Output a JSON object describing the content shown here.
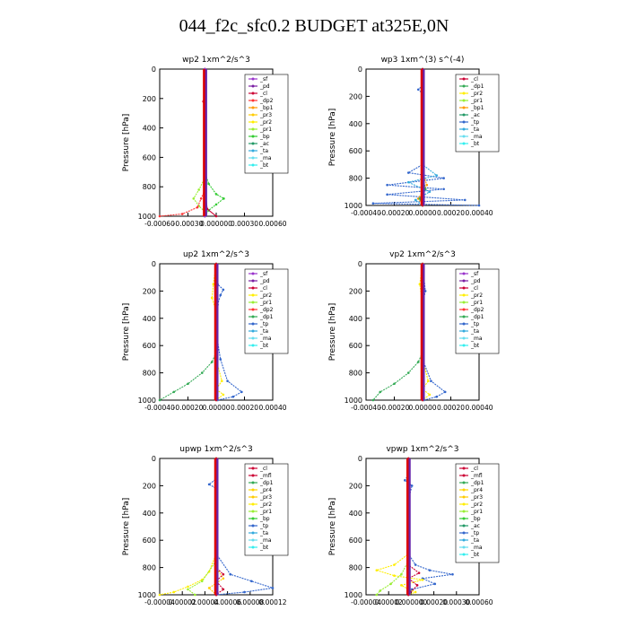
{
  "title": "044_f2c_sfc0.2  BUDGET at325E,0N",
  "colors": {
    "sf": "#9933cc",
    "pd": "#7a1fa2",
    "cl": "#cc0033",
    "mfl": "#cc0033",
    "dp2": "#ff3333",
    "bp1": "#ff9900",
    "pr3": "#ffcc00",
    "pr2": "#ffee00",
    "pr4": "#ffd400",
    "pr1": "#99ee33",
    "bp": "#33cc33",
    "dp1": "#33aa55",
    "ac": "#229966",
    "tp": "#3366cc",
    "ta": "#33aadd",
    "ma": "#66ddee",
    "bt": "#33eeee",
    "red_line": "#dd0000",
    "purple_line": "#6622aa"
  },
  "chart_data": [
    {
      "type": "line",
      "id": "wp2",
      "title": "wp2   1xm^2/s^3",
      "ylabel": "Pressure [hPa]",
      "xlim": [
        -0.0006,
        0.0009
      ],
      "ylim": [
        1000,
        0
      ],
      "xticks": [
        "-0.00060",
        "-0.00030",
        "0.000000",
        "0.00030",
        "0.00060"
      ],
      "yticks": [
        "0",
        "200",
        "400",
        "600",
        "800",
        "1000"
      ],
      "legend": [
        "sf",
        "pd",
        "cl",
        "dp2",
        "bp1",
        "pr3",
        "pr2",
        "pr1",
        "bp",
        "ac",
        "ta",
        "ma",
        "bt"
      ],
      "series": [
        {
          "key": "bp",
          "points": [
            [
              0,
              0
            ],
            [
              0,
              700
            ],
            [
              5e-05,
              780
            ],
            [
              0.00015,
              850
            ],
            [
              0.00025,
              880
            ],
            [
              0.00015,
              920
            ],
            [
              5e-05,
              960
            ],
            [
              0,
              1000
            ]
          ]
        },
        {
          "key": "pr1",
          "points": [
            [
              0,
              0
            ],
            [
              0,
              740
            ],
            [
              -8e-05,
              820
            ],
            [
              -0.00015,
              880
            ],
            [
              -8e-05,
              930
            ],
            [
              0,
              970
            ]
          ]
        },
        {
          "key": "dp2",
          "points": [
            [
              0,
              0
            ],
            [
              0,
              820
            ],
            [
              -5e-05,
              880
            ],
            [
              -0.0001,
              940
            ],
            [
              -0.0003,
              985
            ],
            [
              -0.0006,
              1000
            ]
          ]
        },
        {
          "key": "cl",
          "points": [
            [
              0,
              0
            ],
            [
              0,
              150
            ],
            [
              -2e-05,
              220
            ],
            [
              0,
              260
            ],
            [
              0,
              800
            ],
            [
              3e-05,
              950
            ],
            [
              0.00015,
              1000
            ]
          ]
        },
        {
          "key": "pd",
          "points": [
            [
              0,
              0
            ],
            [
              0,
              1000
            ]
          ]
        },
        {
          "key": "sf",
          "points": [
            [
              0,
              0
            ],
            [
              0,
              1000
            ]
          ]
        }
      ]
    },
    {
      "type": "line",
      "id": "wp3",
      "title": "wp3   1xm^(3) s^(-4)",
      "ylabel": "Pressure [hPa]",
      "xlim": [
        -0.0004,
        0.0004
      ],
      "ylim": [
        1000,
        0
      ],
      "xticks": [
        "-0.00040",
        "-0.00020",
        "0.00000",
        "0.00020",
        "0.00040"
      ],
      "yticks": [
        "0",
        "200",
        "400",
        "600",
        "800",
        "1000"
      ],
      "legend": [
        "cl",
        "dp1",
        "pr2",
        "pr1",
        "bp1",
        "ac",
        "tp",
        "ta",
        "ma",
        "bt"
      ],
      "series": [
        {
          "key": "tp",
          "points": [
            [
              0,
              0
            ],
            [
              0,
              120
            ],
            [
              -3e-05,
              150
            ],
            [
              0,
              180
            ],
            [
              0,
              700
            ],
            [
              -0.0001,
              760
            ],
            [
              0.00015,
              800
            ],
            [
              -0.00025,
              850
            ],
            [
              0.00015,
              880
            ],
            [
              -0.00025,
              920
            ],
            [
              0.0003,
              960
            ],
            [
              -0.00035,
              985
            ],
            [
              0.0004,
              1000
            ]
          ]
        },
        {
          "key": "ta",
          "points": [
            [
              0,
              0
            ],
            [
              0,
              700
            ],
            [
              0.0001,
              780
            ],
            [
              -0.0001,
              830
            ],
            [
              5e-05,
              900
            ],
            [
              -5e-05,
              960
            ],
            [
              0,
              1000
            ]
          ]
        },
        {
          "key": "bp1",
          "points": [
            [
              0,
              0
            ],
            [
              0,
              750
            ],
            [
              3e-05,
              850
            ],
            [
              -3e-05,
              950
            ],
            [
              0,
              1000
            ]
          ]
        },
        {
          "key": "dp1",
          "points": [
            [
              0,
              0
            ],
            [
              0,
              760
            ],
            [
              2e-05,
              880
            ],
            [
              -2e-05,
              950
            ],
            [
              0,
              1000
            ]
          ]
        },
        {
          "key": "cl",
          "points": [
            [
              0,
              0
            ],
            [
              0,
              1000
            ]
          ]
        }
      ]
    },
    {
      "type": "line",
      "id": "up2",
      "title": "up2   1xm^2/s^3",
      "ylabel": "Pressure [hPa]",
      "xlim": [
        -0.0004,
        0.0004
      ],
      "ylim": [
        1000,
        0
      ],
      "xticks": [
        "-0.00040",
        "-0.00020",
        "0.00000",
        "0.00020",
        "0.00040"
      ],
      "yticks": [
        "0",
        "200",
        "400",
        "600",
        "800",
        "1000"
      ],
      "legend": [
        "sf",
        "pd",
        "cl",
        "pr2",
        "pr1",
        "dp2",
        "dp1",
        "tp",
        "ta",
        "ma",
        "bt"
      ],
      "series": [
        {
          "key": "tp",
          "points": [
            [
              0,
              0
            ],
            [
              1e-05,
              150
            ],
            [
              5e-05,
              190
            ],
            [
              3e-05,
              230
            ],
            [
              1e-05,
              300
            ],
            [
              0,
              500
            ],
            [
              3e-05,
              700
            ],
            [
              8e-05,
              860
            ],
            [
              0.00018,
              940
            ],
            [
              0.00012,
              975
            ],
            [
              1e-05,
              1000
            ]
          ]
        },
        {
          "key": "dp1",
          "points": [
            [
              0,
              0
            ],
            [
              0,
              650
            ],
            [
              -3e-05,
              720
            ],
            [
              -0.0001,
              800
            ],
            [
              -0.0002,
              880
            ],
            [
              -0.0003,
              940
            ],
            [
              -0.0004,
              1000
            ]
          ]
        },
        {
          "key": "pr2",
          "points": [
            [
              0,
              0
            ],
            [
              -2e-05,
              150
            ],
            [
              -3e-05,
              250
            ],
            [
              0,
              350
            ],
            [
              0,
              700
            ],
            [
              4e-05,
              860
            ],
            [
              0,
              920
            ],
            [
              5e-05,
              960
            ],
            [
              0,
              1000
            ]
          ]
        },
        {
          "key": "cl",
          "points": [
            [
              0,
              0
            ],
            [
              0,
              1000
            ]
          ]
        }
      ]
    },
    {
      "type": "line",
      "id": "vp2",
      "title": "vp2   1xm^2/s^3",
      "ylabel": "Pressure [hPa]",
      "xlim": [
        -0.0004,
        0.0004
      ],
      "ylim": [
        1000,
        0
      ],
      "xticks": [
        "-0.00040",
        "-0.00020",
        "0.00000",
        "0.00020",
        "0.00040"
      ],
      "yticks": [
        "0",
        "200",
        "400",
        "600",
        "800",
        "1000"
      ],
      "legend": [
        "sf",
        "pd",
        "cl",
        "pr2",
        "pr1",
        "dp2",
        "dp1",
        "tp",
        "ta",
        "ma",
        "bt"
      ],
      "series": [
        {
          "key": "tp",
          "points": [
            [
              0,
              0
            ],
            [
              2e-05,
              200
            ],
            [
              0,
              300
            ],
            [
              0,
              700
            ],
            [
              6e-05,
              860
            ],
            [
              0.00016,
              940
            ],
            [
              0.0001,
              975
            ],
            [
              1e-05,
              1000
            ]
          ]
        },
        {
          "key": "dp1",
          "points": [
            [
              0,
              0
            ],
            [
              0,
              650
            ],
            [
              -3e-05,
              720
            ],
            [
              -0.0001,
              800
            ],
            [
              -0.0002,
              880
            ],
            [
              -0.0003,
              940
            ],
            [
              -0.00035,
              1000
            ]
          ]
        },
        {
          "key": "pr2",
          "points": [
            [
              0,
              0
            ],
            [
              -2e-05,
              150
            ],
            [
              0,
              300
            ],
            [
              0,
              700
            ],
            [
              4e-05,
              860
            ],
            [
              0,
              920
            ],
            [
              5e-05,
              960
            ],
            [
              0,
              1000
            ]
          ]
        },
        {
          "key": "cl",
          "points": [
            [
              0,
              0
            ],
            [
              0,
              1000
            ]
          ]
        }
      ]
    },
    {
      "type": "line",
      "id": "upwp",
      "title": "upwp   1xm^2/s^3",
      "ylabel": "Pressure [hPa]",
      "xlim": [
        -4e-05,
        0.00012
      ],
      "ylim": [
        1000,
        0
      ],
      "xticks": [
        "-0.00004",
        "0.00002",
        "0.00004",
        "0.00006",
        "0.00008",
        "0.00012"
      ],
      "yticks": [
        "0",
        "200",
        "400",
        "600",
        "800",
        "1000"
      ],
      "legend": [
        "cl",
        "mfl",
        "dp1",
        "pr4",
        "pr3",
        "pr2",
        "pr1",
        "bp",
        "tp",
        "ta",
        "ma",
        "bt"
      ],
      "series": [
        {
          "key": "tp",
          "points": [
            [
              4e-05,
              0
            ],
            [
              4e-05,
              150
            ],
            [
              3e-05,
              190
            ],
            [
              4e-05,
              220
            ],
            [
              4e-05,
              350
            ],
            [
              4e-05,
              700
            ],
            [
              6e-05,
              850
            ],
            [
              9e-05,
              900
            ],
            [
              0.00012,
              950
            ],
            [
              8e-05,
              980
            ],
            [
              4e-05,
              1000
            ]
          ]
        },
        {
          "key": "pr2",
          "points": [
            [
              4e-05,
              0
            ],
            [
              4e-05,
              700
            ],
            [
              3e-05,
              830
            ],
            [
              2e-05,
              890
            ],
            [
              0,
              940
            ],
            [
              -2e-05,
              980
            ],
            [
              -4e-05,
              1000
            ]
          ]
        },
        {
          "key": "pr1",
          "points": [
            [
              4e-05,
              0
            ],
            [
              4e-05,
              750
            ],
            [
              2e-05,
              900
            ],
            [
              0,
              960
            ],
            [
              1e-05,
              1000
            ]
          ]
        },
        {
          "key": "pr3",
          "points": [
            [
              4e-05,
              0
            ],
            [
              4e-05,
              800
            ],
            [
              5e-05,
              880
            ],
            [
              3e-05,
              950
            ],
            [
              4e-05,
              1000
            ]
          ]
        },
        {
          "key": "mfl",
          "points": [
            [
              4e-05,
              0
            ],
            [
              4e-05,
              800
            ],
            [
              5e-05,
              850
            ],
            [
              4e-05,
              900
            ],
            [
              5e-05,
              960
            ],
            [
              4e-05,
              1000
            ]
          ]
        },
        {
          "key": "cl",
          "points": [
            [
              4e-05,
              0
            ],
            [
              4e-05,
              1000
            ]
          ]
        }
      ]
    },
    {
      "type": "line",
      "id": "vpwp",
      "title": "vpwp   1xm^2/s^3",
      "ylabel": "Pressure [hPa]",
      "xlim": [
        -4e-05,
        0.0006
      ],
      "ylim": [
        1000,
        0
      ],
      "xticks": [
        "-0.00004",
        "0.00002",
        "0.000000",
        "0.00020",
        "0.00030",
        "0.00060"
      ],
      "yticks": [
        "0",
        "200",
        "400",
        "600",
        "800",
        "1000"
      ],
      "legend": [
        "cl",
        "mfl",
        "dp1",
        "pr4",
        "pr3",
        "pr2",
        "pr1",
        "bp",
        "ac",
        "tp",
        "ta",
        "ma",
        "bt"
      ],
      "series": [
        {
          "key": "tp",
          "points": [
            [
              0.0002,
              0
            ],
            [
              0.0002,
              120
            ],
            [
              0.00018,
              160
            ],
            [
              0.00022,
              200
            ],
            [
              0.0002,
              300
            ],
            [
              0.0002,
              700
            ],
            [
              0.00024,
              780
            ],
            [
              0.00032,
              820
            ],
            [
              0.00045,
              850
            ],
            [
              0.00028,
              880
            ],
            [
              0.00035,
              920
            ],
            [
              0.00022,
              960
            ],
            [
              0.0002,
              1000
            ]
          ]
        },
        {
          "key": "pr2",
          "points": [
            [
              0.0002,
              0
            ],
            [
              0.0002,
              700
            ],
            [
              0.00012,
              780
            ],
            [
              2e-05,
              820
            ],
            [
              0.00012,
              860
            ],
            [
              0.00028,
              890
            ],
            [
              0.00016,
              930
            ],
            [
              0.0002,
              960
            ],
            [
              0.00024,
              980
            ],
            [
              0.0002,
              1000
            ]
          ]
        },
        {
          "key": "pr1",
          "points": [
            [
              0.0002,
              0
            ],
            [
              0.0002,
              750
            ],
            [
              0.00016,
              850
            ],
            [
              0.0001,
              920
            ],
            [
              4e-05,
              970
            ],
            [
              2e-05,
              1000
            ]
          ]
        },
        {
          "key": "mfl",
          "points": [
            [
              0.0002,
              0
            ],
            [
              0.0002,
              780
            ],
            [
              0.00026,
              840
            ],
            [
              0.0002,
              880
            ],
            [
              0.00025,
              930
            ],
            [
              0.0002,
              1000
            ]
          ]
        },
        {
          "key": "cl",
          "points": [
            [
              0.0002,
              0
            ],
            [
              0.0002,
              1000
            ]
          ]
        }
      ]
    }
  ]
}
